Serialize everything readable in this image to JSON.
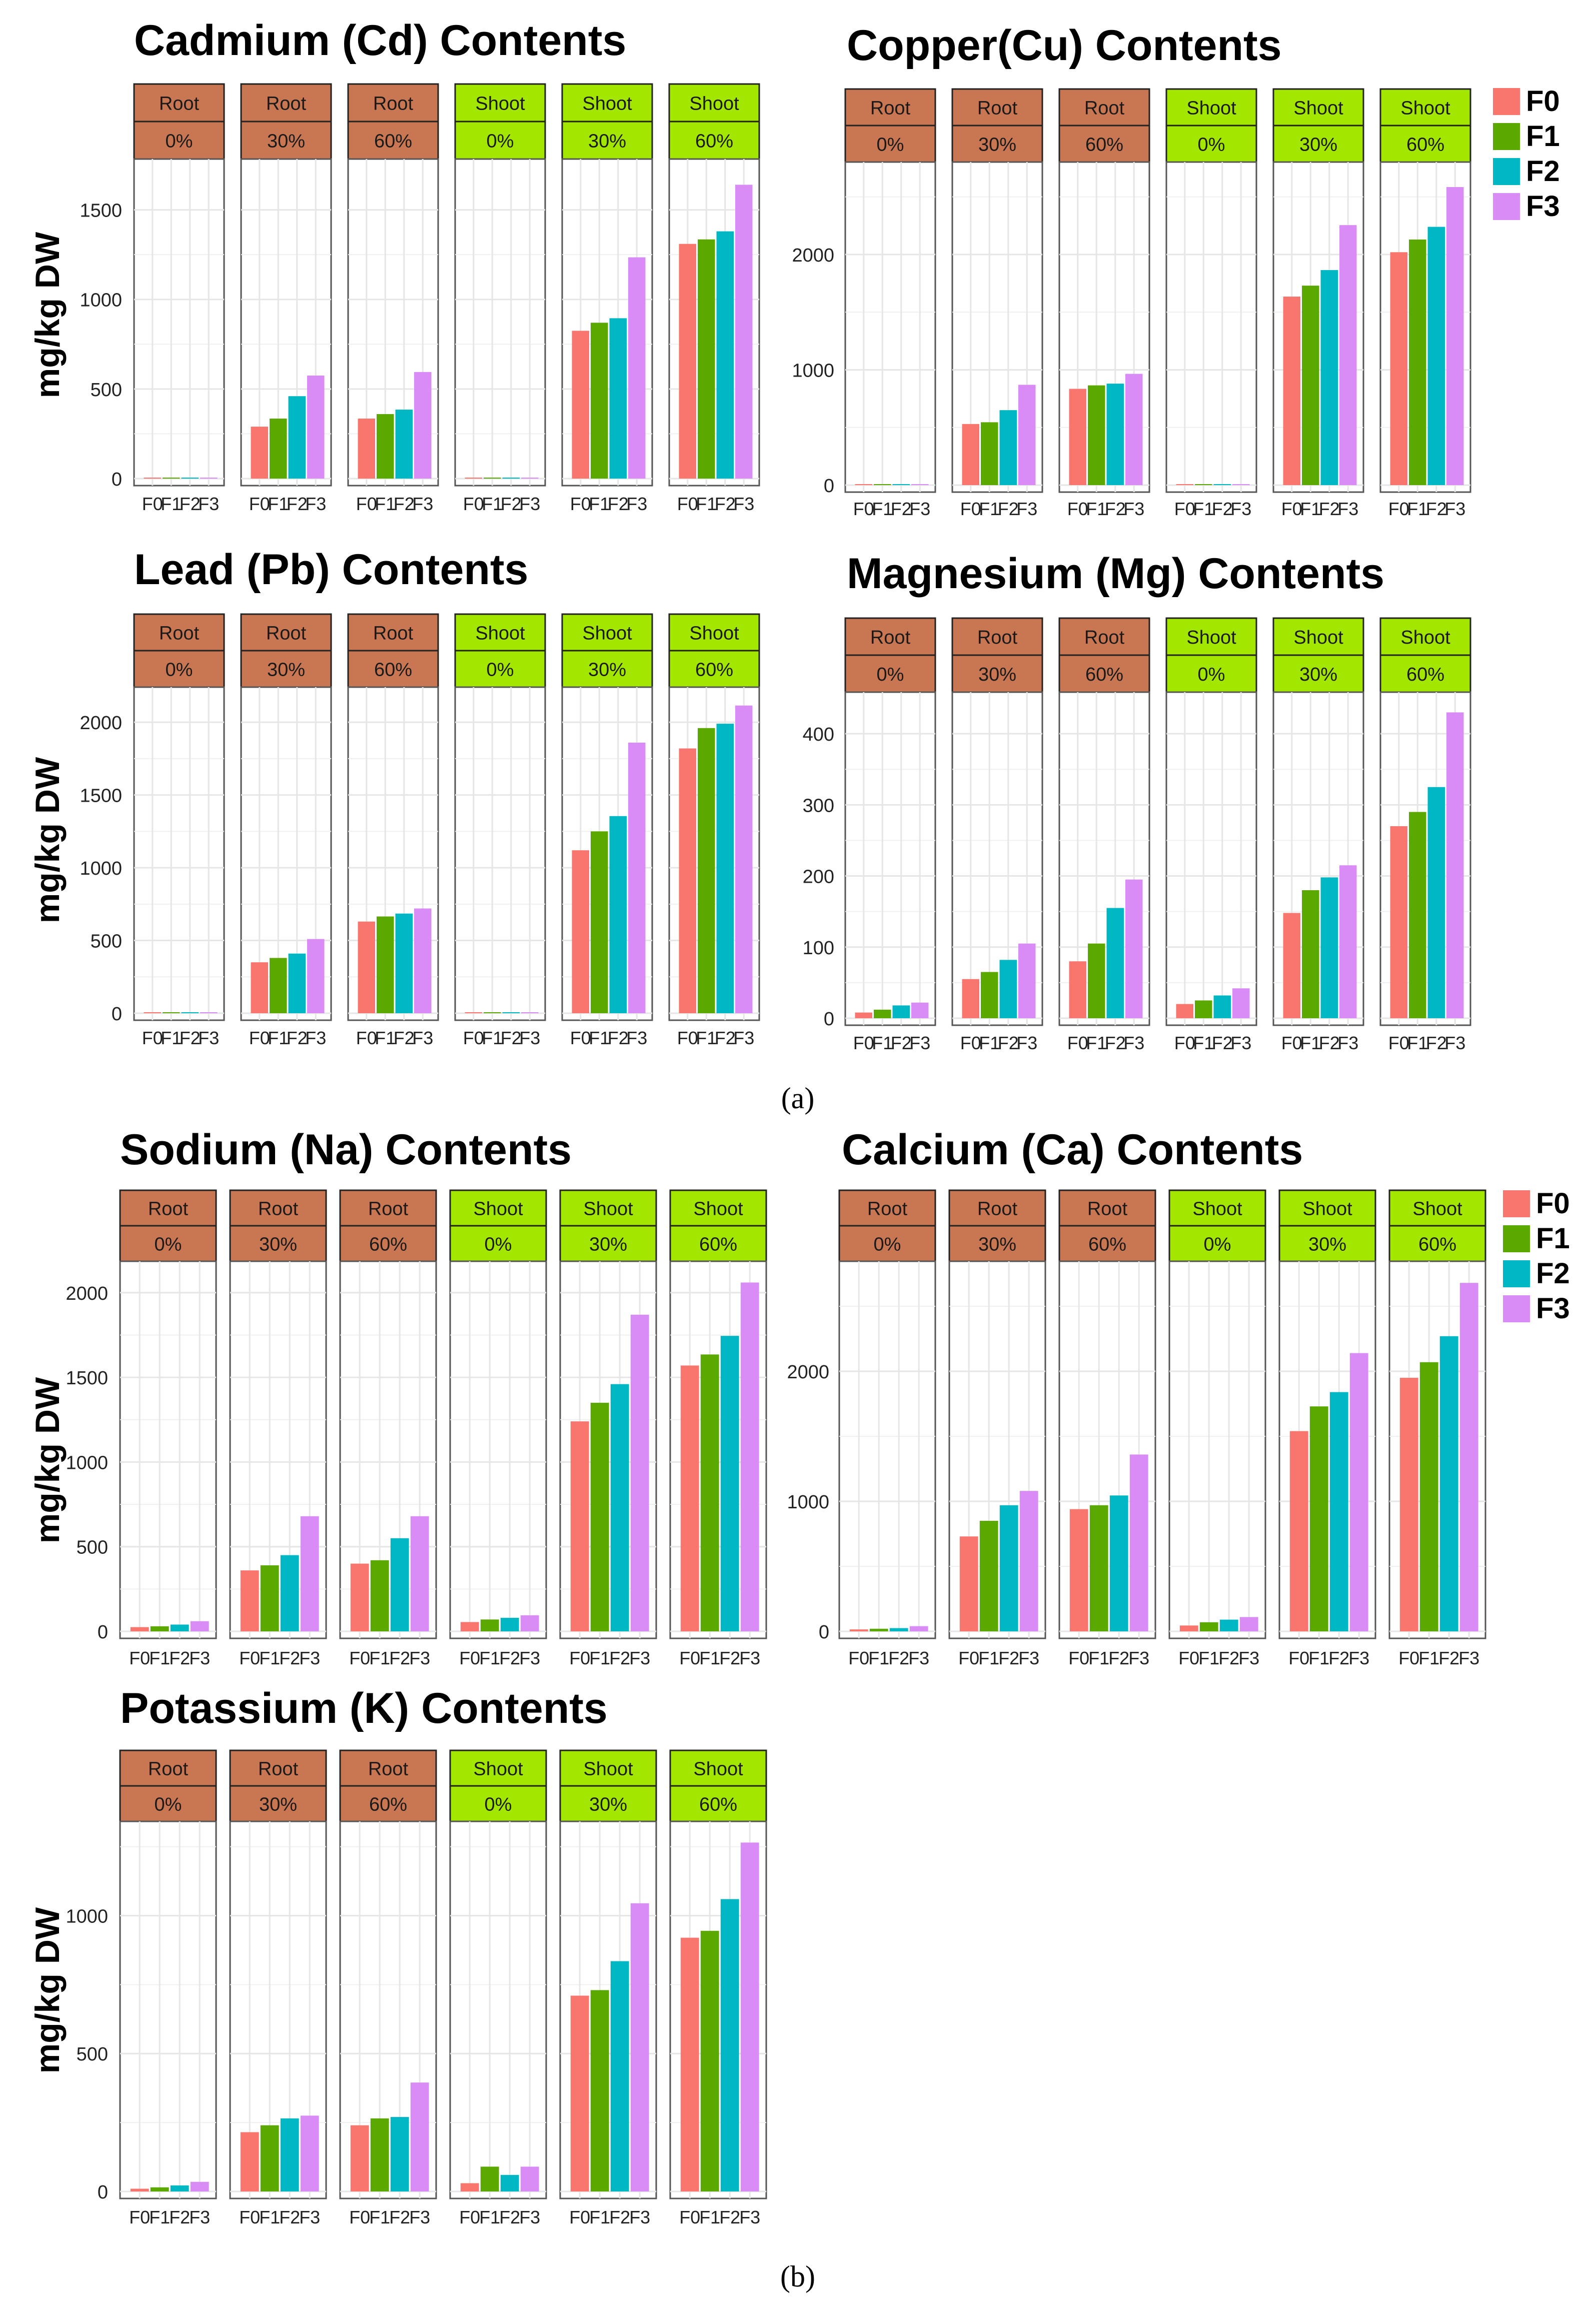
{
  "figure": {
    "caption_a": "(a)",
    "caption_b": "(b)",
    "legend": {
      "entries": [
        {
          "label": "F0",
          "color": "#f8766d"
        },
        {
          "label": "F1",
          "color": "#5aa800"
        },
        {
          "label": "F2",
          "color": "#00b8c4"
        },
        {
          "label": "F3",
          "color": "#d98cf5"
        }
      ]
    },
    "colors": {
      "root_strip": "#c97653",
      "shoot_strip": "#a3e600",
      "grid": "#e6e6e6",
      "border": "#555555"
    }
  },
  "chart_data": [
    {
      "type": "bar",
      "title": "Cadmium (Cd) Contents",
      "ylabel": "mg/kg DW",
      "ylim": [
        0,
        1750
      ],
      "yticks": [
        0,
        500,
        1000,
        1500
      ],
      "panels": [
        {
          "part": "Root",
          "level": "0%",
          "values": [
            0,
            0,
            0,
            0
          ]
        },
        {
          "part": "Root",
          "level": "30%",
          "values": [
            290,
            335,
            460,
            575
          ]
        },
        {
          "part": "Root",
          "level": "60%",
          "values": [
            335,
            360,
            385,
            595
          ]
        },
        {
          "part": "Shoot",
          "level": "0%",
          "values": [
            0,
            0,
            0,
            0
          ]
        },
        {
          "part": "Shoot",
          "level": "30%",
          "values": [
            825,
            870,
            895,
            1235
          ]
        },
        {
          "part": "Shoot",
          "level": "60%",
          "values": [
            1310,
            1335,
            1380,
            1640
          ]
        }
      ],
      "categories": [
        "F0",
        "F1",
        "F2",
        "F3"
      ]
    },
    {
      "type": "bar",
      "title": "Copper(Cu) Contents",
      "ylabel": "",
      "ylim": [
        0,
        2750
      ],
      "yticks": [
        0,
        1000,
        2000
      ],
      "panels": [
        {
          "part": "Root",
          "level": "0%",
          "values": [
            0,
            0,
            0,
            0
          ]
        },
        {
          "part": "Root",
          "level": "30%",
          "values": [
            530,
            545,
            650,
            870
          ]
        },
        {
          "part": "Root",
          "level": "60%",
          "values": [
            835,
            865,
            880,
            965
          ]
        },
        {
          "part": "Shoot",
          "level": "0%",
          "values": [
            0,
            0,
            0,
            0
          ]
        },
        {
          "part": "Shoot",
          "level": "30%",
          "values": [
            1635,
            1730,
            1865,
            2255
          ]
        },
        {
          "part": "Shoot",
          "level": "60%",
          "values": [
            2020,
            2130,
            2240,
            2585
          ]
        }
      ],
      "categories": [
        "F0",
        "F1",
        "F2",
        "F3"
      ]
    },
    {
      "type": "bar",
      "title": "Lead (Pb) Contents",
      "ylabel": "mg/kg DW",
      "ylim": [
        0,
        2200
      ],
      "yticks": [
        0,
        500,
        1000,
        1500,
        2000
      ],
      "panels": [
        {
          "part": "Root",
          "level": "0%",
          "values": [
            0,
            0,
            0,
            0
          ]
        },
        {
          "part": "Root",
          "level": "30%",
          "values": [
            350,
            380,
            410,
            510
          ]
        },
        {
          "part": "Root",
          "level": "60%",
          "values": [
            630,
            665,
            685,
            720
          ]
        },
        {
          "part": "Shoot",
          "level": "0%",
          "values": [
            0,
            0,
            0,
            0
          ]
        },
        {
          "part": "Shoot",
          "level": "30%",
          "values": [
            1120,
            1250,
            1355,
            1860
          ]
        },
        {
          "part": "Shoot",
          "level": "60%",
          "values": [
            1820,
            1960,
            1990,
            2115
          ]
        }
      ],
      "categories": [
        "F0",
        "F1",
        "F2",
        "F3"
      ]
    },
    {
      "type": "bar",
      "title": "Magnesium (Mg) Contents",
      "ylabel": "",
      "ylim": [
        0,
        450
      ],
      "yticks": [
        0,
        100,
        200,
        300,
        400
      ],
      "panels": [
        {
          "part": "Root",
          "level": "0%",
          "values": [
            8,
            12,
            18,
            22
          ]
        },
        {
          "part": "Root",
          "level": "30%",
          "values": [
            55,
            65,
            82,
            105
          ]
        },
        {
          "part": "Root",
          "level": "60%",
          "values": [
            80,
            105,
            155,
            195
          ]
        },
        {
          "part": "Shoot",
          "level": "0%",
          "values": [
            20,
            25,
            32,
            42
          ]
        },
        {
          "part": "Shoot",
          "level": "30%",
          "values": [
            148,
            180,
            198,
            215
          ]
        },
        {
          "part": "Shoot",
          "level": "60%",
          "values": [
            270,
            290,
            325,
            430
          ]
        }
      ],
      "categories": [
        "F0",
        "F1",
        "F2",
        "F3"
      ]
    },
    {
      "type": "bar",
      "title": "Sodium (Na) Contents",
      "ylabel": "mg/kg DW",
      "ylim": [
        0,
        2150
      ],
      "yticks": [
        0,
        500,
        1000,
        1500,
        2000
      ],
      "panels": [
        {
          "part": "Root",
          "level": "0%",
          "values": [
            25,
            30,
            40,
            60
          ]
        },
        {
          "part": "Root",
          "level": "30%",
          "values": [
            360,
            390,
            450,
            680
          ]
        },
        {
          "part": "Root",
          "level": "60%",
          "values": [
            400,
            420,
            550,
            680
          ]
        },
        {
          "part": "Shoot",
          "level": "0%",
          "values": [
            55,
            70,
            80,
            95
          ]
        },
        {
          "part": "Shoot",
          "level": "30%",
          "values": [
            1240,
            1350,
            1460,
            1870
          ]
        },
        {
          "part": "Shoot",
          "level": "60%",
          "values": [
            1570,
            1635,
            1745,
            2060
          ]
        }
      ],
      "categories": [
        "F0",
        "F1",
        "F2",
        "F3"
      ]
    },
    {
      "type": "bar",
      "title": "Calcium (Ca) Contents",
      "ylabel": "",
      "ylim": [
        0,
        2800
      ],
      "yticks": [
        0,
        1000,
        2000
      ],
      "panels": [
        {
          "part": "Root",
          "level": "0%",
          "values": [
            15,
            20,
            25,
            40
          ]
        },
        {
          "part": "Root",
          "level": "30%",
          "values": [
            730,
            850,
            970,
            1080
          ]
        },
        {
          "part": "Root",
          "level": "60%",
          "values": [
            940,
            970,
            1045,
            1360
          ]
        },
        {
          "part": "Shoot",
          "level": "0%",
          "values": [
            45,
            70,
            90,
            110
          ]
        },
        {
          "part": "Shoot",
          "level": "30%",
          "values": [
            1540,
            1730,
            1840,
            2140
          ]
        },
        {
          "part": "Shoot",
          "level": "60%",
          "values": [
            1950,
            2070,
            2270,
            2680
          ]
        }
      ],
      "categories": [
        "F0",
        "F1",
        "F2",
        "F3"
      ]
    },
    {
      "type": "bar",
      "title": "Potassium (K) Contents",
      "ylabel": "mg/kg DW",
      "ylim": [
        0,
        1320
      ],
      "yticks": [
        0,
        500,
        1000
      ],
      "panels": [
        {
          "part": "Root",
          "level": "0%",
          "values": [
            10,
            15,
            22,
            35
          ]
        },
        {
          "part": "Root",
          "level": "30%",
          "values": [
            215,
            240,
            265,
            275
          ]
        },
        {
          "part": "Root",
          "level": "60%",
          "values": [
            240,
            265,
            270,
            395
          ]
        },
        {
          "part": "Shoot",
          "level": "0%",
          "values": [
            30,
            90,
            60,
            90
          ]
        },
        {
          "part": "Shoot",
          "level": "30%",
          "values": [
            710,
            730,
            835,
            1045
          ]
        },
        {
          "part": "Shoot",
          "level": "60%",
          "values": [
            920,
            945,
            1060,
            1265
          ]
        }
      ],
      "categories": [
        "F0",
        "F1",
        "F2",
        "F3"
      ]
    }
  ]
}
